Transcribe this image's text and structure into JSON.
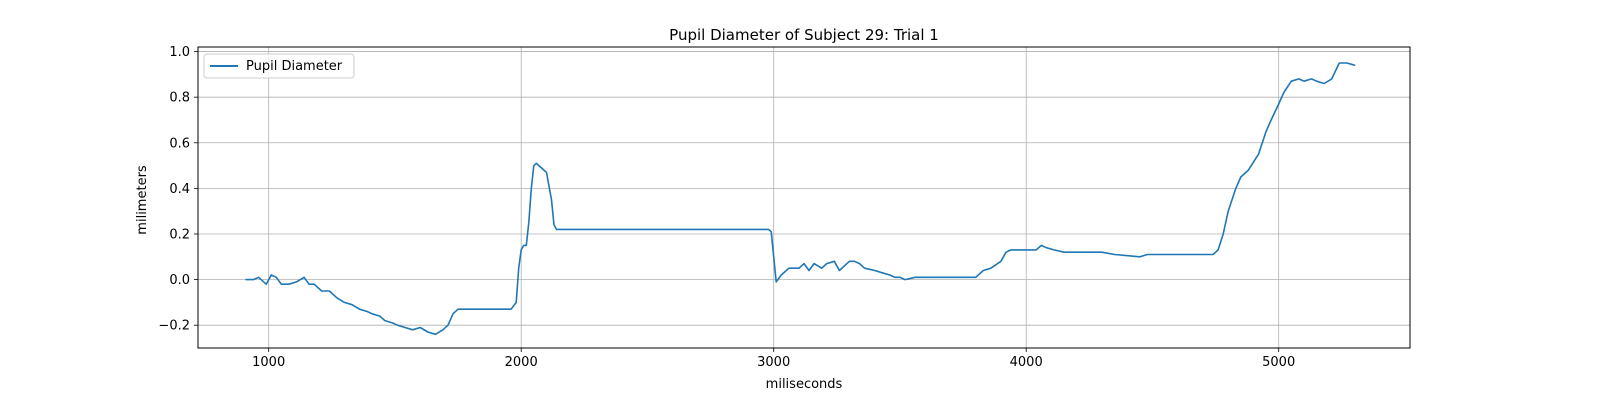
{
  "chart_data": {
    "type": "line",
    "title": "Pupil Diameter of Subject 29: Trial 1",
    "xlabel": "miliseconds",
    "ylabel": "milimeters",
    "xlim": [
      720,
      5520
    ],
    "ylim": [
      -0.3,
      1.02
    ],
    "xticks": [
      1000,
      2000,
      3000,
      4000,
      5000
    ],
    "yticks": [
      -0.2,
      0.0,
      0.2,
      0.4,
      0.6,
      0.8,
      1.0
    ],
    "xtick_labels": [
      "1000",
      "2000",
      "3000",
      "4000",
      "5000"
    ],
    "ytick_labels": [
      "−0.2",
      "0.0",
      "0.2",
      "0.4",
      "0.6",
      "0.8",
      "1.0"
    ],
    "grid": true,
    "legend_position": "top-left",
    "series": [
      {
        "name": "Pupil Diameter",
        "color": "#1f77b4",
        "x": [
          910,
          940,
          960,
          990,
          1010,
          1030,
          1050,
          1080,
          1110,
          1140,
          1160,
          1180,
          1210,
          1240,
          1270,
          1300,
          1330,
          1360,
          1390,
          1410,
          1440,
          1460,
          1490,
          1510,
          1540,
          1570,
          1600,
          1630,
          1660,
          1690,
          1710,
          1730,
          1750,
          1770,
          1790,
          1800,
          1830,
          1900,
          1960,
          1980,
          1990,
          2000,
          2010,
          2020,
          2030,
          2040,
          2050,
          2060,
          2070,
          2100,
          2120,
          2130,
          2140,
          2160,
          2200,
          2500,
          2980,
          2990,
          3000,
          3010,
          3030,
          3060,
          3100,
          3120,
          3140,
          3160,
          3190,
          3210,
          3240,
          3260,
          3300,
          3320,
          3340,
          3360,
          3400,
          3430,
          3460,
          3480,
          3500,
          3520,
          3560,
          3580,
          3610,
          3650,
          3800,
          3830,
          3860,
          3900,
          3920,
          3940,
          3980,
          4040,
          4060,
          4080,
          4110,
          4150,
          4200,
          4300,
          4350,
          4450,
          4480,
          4500,
          4740,
          4760,
          4780,
          4800,
          4830,
          4850,
          4880,
          4920,
          4950,
          4970,
          5000,
          5020,
          5050,
          5080,
          5100,
          5130,
          5150,
          5180,
          5210,
          5240,
          5270,
          5300
        ],
        "values": [
          0.0,
          0.0,
          0.01,
          -0.02,
          0.02,
          0.01,
          -0.02,
          -0.02,
          -0.01,
          0.01,
          -0.02,
          -0.02,
          -0.05,
          -0.05,
          -0.08,
          -0.1,
          -0.11,
          -0.13,
          -0.14,
          -0.15,
          -0.16,
          -0.18,
          -0.19,
          -0.2,
          -0.21,
          -0.22,
          -0.21,
          -0.23,
          -0.24,
          -0.22,
          -0.2,
          -0.15,
          -0.13,
          -0.13,
          -0.13,
          -0.13,
          -0.13,
          -0.13,
          -0.13,
          -0.1,
          0.05,
          0.13,
          0.15,
          0.15,
          0.25,
          0.4,
          0.5,
          0.51,
          0.5,
          0.47,
          0.35,
          0.24,
          0.22,
          0.22,
          0.22,
          0.22,
          0.22,
          0.21,
          0.1,
          -0.01,
          0.02,
          0.05,
          0.05,
          0.07,
          0.04,
          0.07,
          0.05,
          0.07,
          0.08,
          0.04,
          0.08,
          0.08,
          0.07,
          0.05,
          0.04,
          0.03,
          0.02,
          0.01,
          0.01,
          0.0,
          0.01,
          0.01,
          0.01,
          0.01,
          0.01,
          0.04,
          0.05,
          0.08,
          0.12,
          0.13,
          0.13,
          0.13,
          0.15,
          0.14,
          0.13,
          0.12,
          0.12,
          0.12,
          0.11,
          0.1,
          0.11,
          0.11,
          0.11,
          0.13,
          0.2,
          0.3,
          0.4,
          0.45,
          0.48,
          0.55,
          0.65,
          0.7,
          0.77,
          0.82,
          0.87,
          0.88,
          0.87,
          0.88,
          0.87,
          0.86,
          0.88,
          0.95,
          0.95,
          0.94
        ]
      }
    ]
  }
}
